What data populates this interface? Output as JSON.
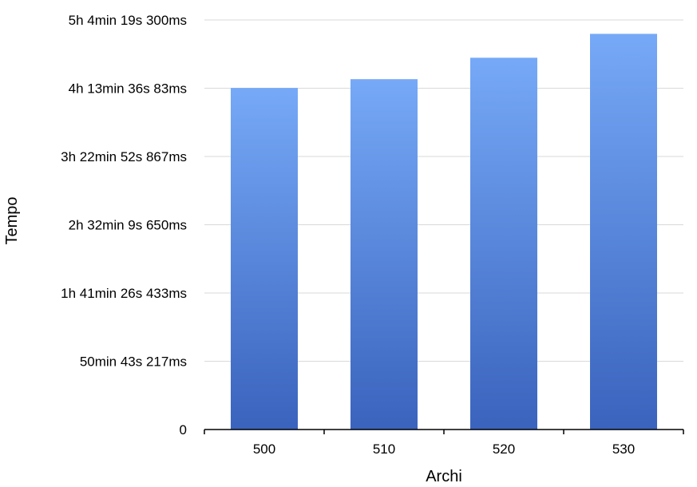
{
  "chart_data": {
    "type": "bar",
    "title": "",
    "xlabel": "Archi",
    "ylabel": "Tempo",
    "categories": [
      "500",
      "510",
      "520",
      "530"
    ],
    "values_seconds": [
      15230,
      15620,
      16575,
      17640
    ],
    "ylim_seconds": [
      0,
      18259.3
    ],
    "y_ticks": [
      {
        "label": "0",
        "value": 0
      },
      {
        "label": "50min 43s 217ms",
        "value": 3043.217
      },
      {
        "label": "1h 41min 26s 433ms",
        "value": 6086.433
      },
      {
        "label": "2h 32min 9s 650ms",
        "value": 9129.65
      },
      {
        "label": "3h 22min 52s 867ms",
        "value": 12172.867
      },
      {
        "label": "4h 13min 36s 83ms",
        "value": 15216.083
      },
      {
        "label": "5h 4min 19s 300ms",
        "value": 18259.3
      }
    ],
    "grid": true,
    "legend": "none",
    "colors": {
      "bar_top": "#76a9f7",
      "bar_bottom": "#3a63bd"
    }
  }
}
